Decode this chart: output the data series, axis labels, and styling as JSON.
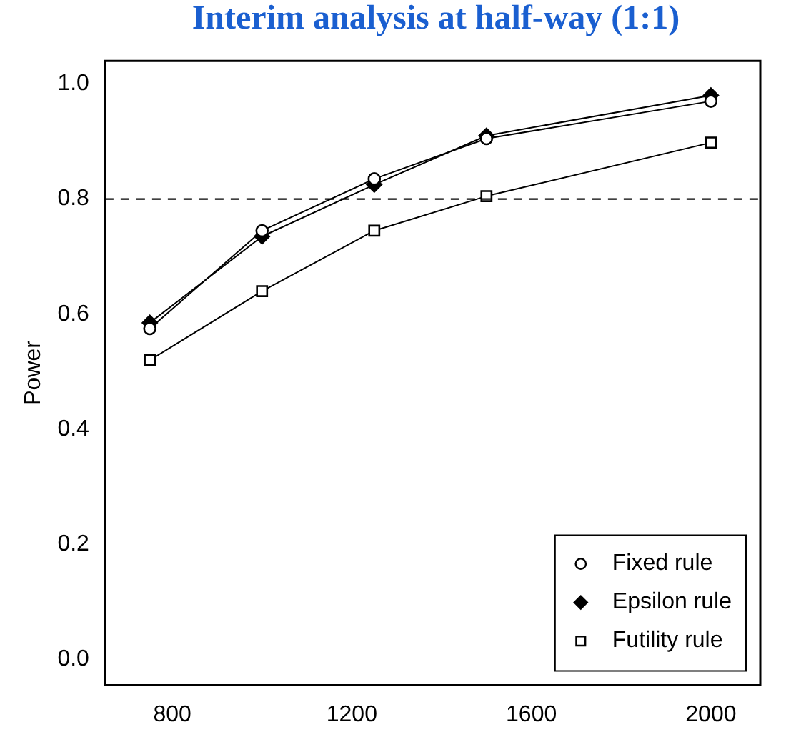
{
  "chart_data": {
    "type": "line",
    "title": "Interim analysis at half-way (1:1)",
    "ylabel": "Power",
    "x": [
      750,
      1000,
      1250,
      1500,
      2000
    ],
    "series": [
      {
        "name": "Fixed rule",
        "color": "#000000",
        "marker": "circle",
        "values": [
          0.575,
          0.745,
          0.835,
          0.905,
          0.97
        ]
      },
      {
        "name": "Epsilon rule",
        "color": "#000000",
        "marker": "diamond",
        "values": [
          0.585,
          0.735,
          0.825,
          0.91,
          0.98
        ]
      },
      {
        "name": "Futility rule",
        "color": "#000000",
        "marker": "square",
        "values": [
          0.52,
          0.64,
          0.745,
          0.805,
          0.898
        ]
      }
    ],
    "xlim": [
      650,
      2110
    ],
    "xticks": [
      800,
      1200,
      1600,
      2000
    ],
    "ylim": [
      -0.045,
      1.04
    ],
    "yticks": [
      {
        "value": 0,
        "label": "0.0"
      },
      0.2,
      0.4,
      0.6,
      0.8,
      {
        "value": 1,
        "label": "1.0"
      }
    ],
    "ref_lines": [
      {
        "axis": "y",
        "value": 0.8,
        "line_style": "dashed",
        "color": "#000000"
      }
    ],
    "grid": false,
    "legend": "bottom right"
  }
}
